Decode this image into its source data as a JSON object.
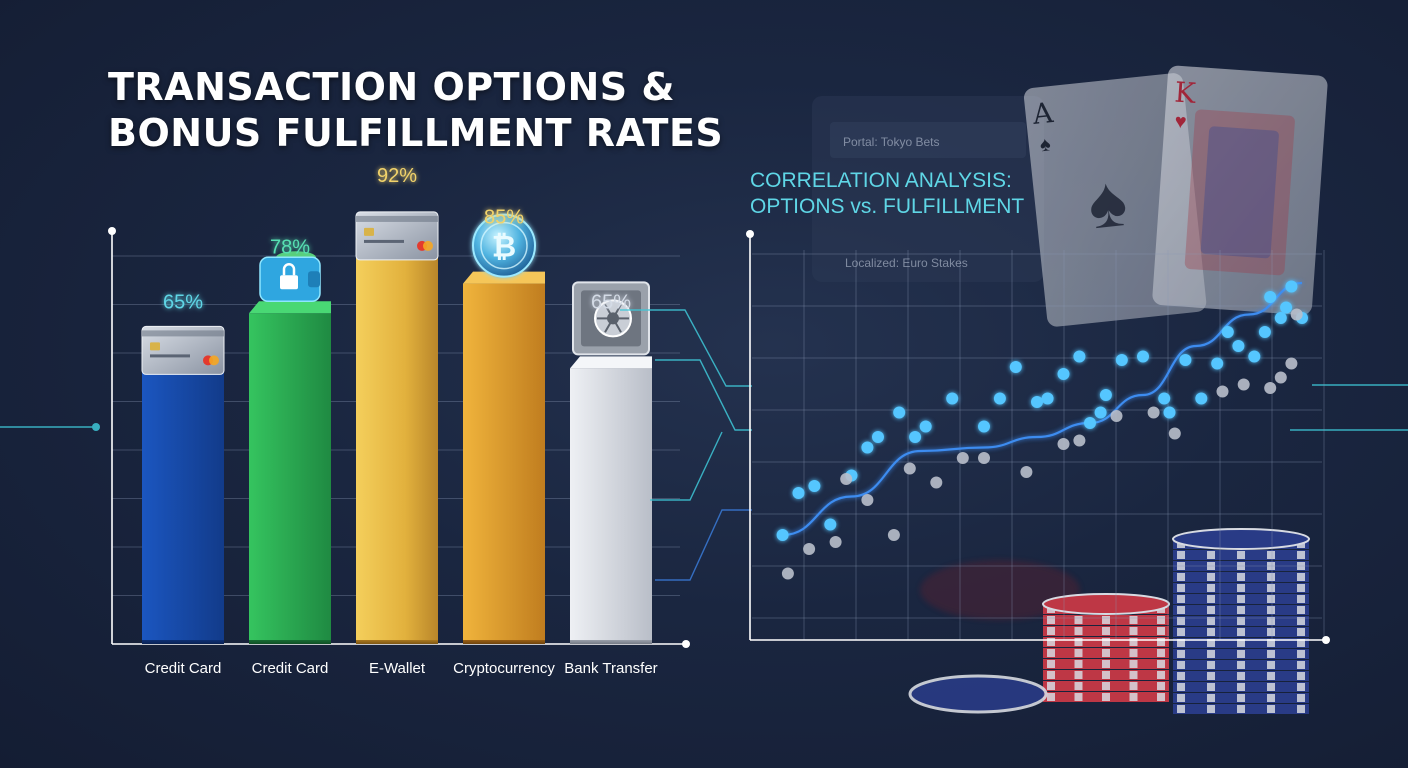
{
  "chart_data": [
    {
      "type": "bar",
      "title": "TRANSACTION OPTIONS & BONUS FULFILLMENT RATES",
      "categories": [
        "Credit Card",
        "Credit Card",
        "E-Wallet",
        "Cryptocurrency",
        "Bank Transfer"
      ],
      "values": [
        65,
        78,
        92,
        85,
        65
      ],
      "value_labels": [
        "65%",
        "78%",
        "92%",
        "85%",
        "65%"
      ],
      "label_colors": [
        "#5fd6e6",
        "#57e0b2",
        "#f2d36b",
        "#f2d36b",
        "#d4dbe6"
      ],
      "ylim": [
        0,
        100
      ],
      "grid": true,
      "icons": [
        "credit-card-icon",
        "wallet-lock-icon",
        "credit-card-icon",
        "bitcoin-icon",
        "safe-vault-icon"
      ],
      "colors": {
        "bar_1": "#1d5fc9",
        "bar_2": "#2fb85a",
        "bar_3": "#e6b640",
        "bar_4": "#e0a030",
        "bar_5": "#d6dae2"
      }
    },
    {
      "type": "scatter",
      "title": "CORRELATION ANALYSIS: OPTIONS vs. FULFILLMENT",
      "xlim": [
        0,
        100
      ],
      "ylim": [
        0,
        100
      ],
      "grid": true,
      "series": [
        {
          "color": "#55c6ff",
          "points": [
            [
              2,
              22
            ],
            [
              5,
              34
            ],
            [
              8,
              36
            ],
            [
              11,
              25
            ],
            [
              15,
              39
            ],
            [
              18,
              47
            ],
            [
              20,
              50
            ],
            [
              24,
              57
            ],
            [
              27,
              50
            ],
            [
              29,
              53
            ],
            [
              34,
              61
            ],
            [
              40,
              53
            ],
            [
              43,
              61
            ],
            [
              46,
              70
            ],
            [
              50,
              60
            ],
            [
              52,
              61
            ],
            [
              55,
              68
            ],
            [
              58,
              73
            ],
            [
              60,
              54
            ],
            [
              62,
              57
            ],
            [
              63,
              62
            ],
            [
              66,
              72
            ],
            [
              70,
              73
            ],
            [
              74,
              61
            ],
            [
              75,
              57
            ],
            [
              78,
              72
            ],
            [
              81,
              61
            ],
            [
              84,
              71
            ],
            [
              86,
              80
            ],
            [
              88,
              76
            ],
            [
              91,
              73
            ],
            [
              93,
              80
            ],
            [
              94,
              90
            ],
            [
              96,
              84
            ],
            [
              97,
              87
            ],
            [
              98,
              93
            ],
            [
              100,
              84
            ]
          ]
        },
        {
          "color": "#b9bfcb",
          "points": [
            [
              3,
              11
            ],
            [
              7,
              18
            ],
            [
              12,
              20
            ],
            [
              14,
              38
            ],
            [
              18,
              32
            ],
            [
              23,
              22
            ],
            [
              26,
              41
            ],
            [
              31,
              37
            ],
            [
              36,
              44
            ],
            [
              40,
              44
            ],
            [
              48,
              40
            ],
            [
              55,
              48
            ],
            [
              58,
              49
            ],
            [
              65,
              56
            ],
            [
              72,
              57
            ],
            [
              76,
              51
            ],
            [
              85,
              63
            ],
            [
              89,
              65
            ],
            [
              94,
              64
            ],
            [
              96,
              67
            ],
            [
              98,
              71
            ],
            [
              99,
              85
            ]
          ]
        }
      ],
      "trend": [
        [
          2,
          22
        ],
        [
          15,
          33
        ],
        [
          28,
          46
        ],
        [
          40,
          47
        ],
        [
          50,
          50
        ],
        [
          60,
          54
        ],
        [
          70,
          62
        ],
        [
          80,
          76
        ],
        [
          90,
          85
        ],
        [
          100,
          94
        ]
      ]
    }
  ],
  "scene": {
    "portal_label": "Portal: Tokyo Bets",
    "localized_label": "Localized: Euro Stakes",
    "card_1": {
      "rank": "A",
      "suit": "♠"
    },
    "card_2": {
      "rank": "K",
      "suit": "♥"
    },
    "chip_colors": [
      "#2c3f8f",
      "#d23a47",
      "#eef0f5"
    ]
  }
}
